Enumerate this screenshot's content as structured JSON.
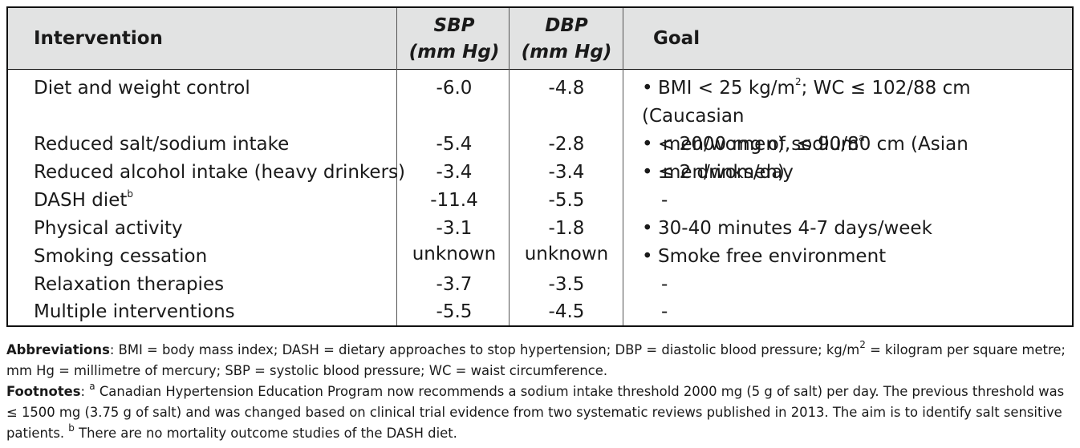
{
  "table": {
    "headers": {
      "intervention": "Intervention",
      "sbp_line1": "SBP",
      "sbp_line2": "(mm Hg)",
      "dbp_line1": "DBP",
      "dbp_line2": "(mm Hg)",
      "goal": "Goal"
    },
    "rows": [
      {
        "intervention": "Diet and weight control",
        "sbp": "-6.0",
        "dbp": "-4.8",
        "goal_line1": "BMI < 25 kg/m",
        "goal_sup": "2",
        "goal_line1_rest": "; WC ≤ 102/88 cm (Caucasian",
        "goal_line2": "men/women), ≤ 90/80 cm (Asian men/women)"
      },
      {
        "intervention": "Reduced salt/sodium intake",
        "sbp": "-5.4",
        "dbp": "-2.8",
        "goal": "< 2000 mg of sodium",
        "goal_sup": "a"
      },
      {
        "intervention": "Reduced alcohol intake (heavy drinkers)",
        "sbp": "-3.4",
        "dbp": "-3.4",
        "goal": "≤ 2 drinks/day"
      },
      {
        "intervention": "DASH diet",
        "intervention_sup": "b",
        "sbp": "-11.4",
        "dbp": "-5.5",
        "goal": "-"
      },
      {
        "intervention": "Physical activity",
        "sbp": "-3.1",
        "dbp": "-1.8",
        "goal": "30-40 minutes 4-7 days/week"
      },
      {
        "intervention": "Smoking cessation",
        "sbp": "unknown",
        "dbp": "unknown",
        "goal": "Smoke free environment"
      },
      {
        "intervention": "Relaxation therapies",
        "sbp": "-3.7",
        "dbp": "-3.5",
        "goal": "-"
      },
      {
        "intervention": "Multiple interventions",
        "sbp": "-5.5",
        "dbp": "-4.5",
        "goal": "-"
      }
    ],
    "bullet": "•"
  },
  "notes": {
    "abbr_label": "Abbreviations",
    "abbr_text_1": ": BMI = body mass index; DASH = dietary approaches to stop hypertension; DBP = diastolic blood pressure; kg/m",
    "abbr_sup": "2",
    "abbr_text_2": " = kilogram per square metre; mm Hg = millimetre of mercury; SBP = systolic blood pressure; WC = waist circumference.",
    "foot_label": "Footnotes",
    "foot_text_1": ": ",
    "foot_sup_a": "a",
    "foot_text_2": " Canadian Hypertension Education Program now recommends a sodium intake threshold 2000 mg (5 g of salt) per day. The previous threshold was ≤ 1500 mg (3.75 g of salt) and was changed based on clinical trial evidence from two systematic reviews published in 2013. The aim is to identify salt sensitive patients. ",
    "foot_sup_b": "b",
    "foot_text_3": " There are no mortality outcome studies of the DASH diet."
  }
}
